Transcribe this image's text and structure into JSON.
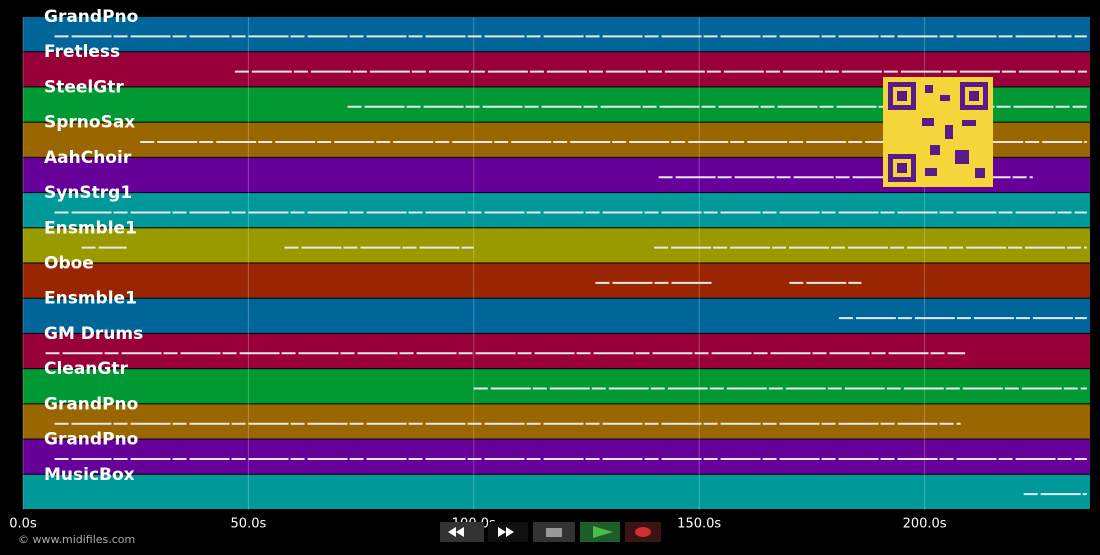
{
  "tracks": [
    {
      "name": "GrandPno",
      "color": "#006699",
      "notes": [
        [
          7,
          236
        ]
      ]
    },
    {
      "name": "Fretless",
      "color": "#99003a",
      "notes": [
        [
          47,
          236
        ]
      ]
    },
    {
      "name": "SteelGtr",
      "color": "#009933",
      "notes": [
        [
          72,
          236
        ]
      ]
    },
    {
      "name": "SprnoSax",
      "color": "#996600",
      "notes": [
        [
          26,
          236
        ]
      ]
    },
    {
      "name": "AahChoir",
      "color": "#660099",
      "notes": [
        [
          141,
          224
        ]
      ]
    },
    {
      "name": "SynStrg1",
      "color": "#009999",
      "notes": [
        [
          7,
          236
        ]
      ]
    },
    {
      "name": "Ensmble1",
      "color": "#999900",
      "notes": [
        [
          13,
          23
        ],
        [
          58,
          100
        ],
        [
          140,
          236
        ]
      ]
    },
    {
      "name": "Oboe",
      "color": "#992600",
      "notes": [
        [
          127,
          153
        ],
        [
          170,
          186
        ]
      ]
    },
    {
      "name": "Ensmble1",
      "color": "#006699",
      "notes": [
        [
          181,
          236
        ]
      ]
    },
    {
      "name": "GM Drums",
      "color": "#99003a",
      "notes": [
        [
          5,
          209
        ]
      ]
    },
    {
      "name": "CleanGtr",
      "color": "#009933",
      "notes": [
        [
          100,
          236
        ]
      ]
    },
    {
      "name": "GrandPno",
      "color": "#996600",
      "notes": [
        [
          7,
          208
        ]
      ]
    },
    {
      "name": "GrandPno",
      "color": "#660099",
      "notes": [
        [
          7,
          236
        ]
      ]
    },
    {
      "name": "MusicBox",
      "color": "#009999",
      "notes": [
        [
          222,
          236
        ]
      ]
    }
  ],
  "timeline": {
    "xlim": [
      0,
      236.7
    ],
    "xticks": [
      {
        "value": 0,
        "label": "0.0s"
      },
      {
        "value": 50,
        "label": "50.0s"
      },
      {
        "value": 100,
        "label": "100.0s"
      },
      {
        "value": 150,
        "label": "150.0s"
      },
      {
        "value": 200,
        "label": "200.0s"
      }
    ],
    "grid": true
  },
  "footer": {
    "copyright": "© www.midifiles.com"
  }
}
